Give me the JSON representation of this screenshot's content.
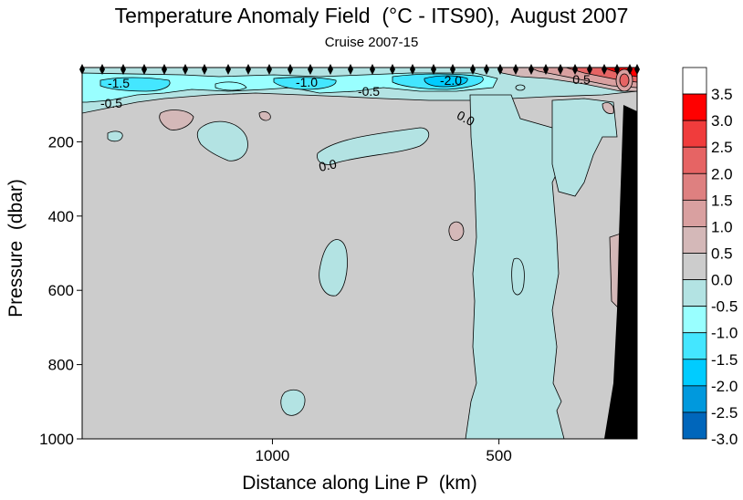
{
  "chart_data": {
    "type": "heatmap",
    "title": "Temperature Anomaly Field  (°C - ITS90),  August 2007",
    "subtitle": "Cruise 2007-15",
    "xlabel": "Distance along Line P  (km)",
    "ylabel": "Pressure  (dbar)",
    "x_ticks": [
      "1000",
      "500"
    ],
    "x_tick_values": [
      1000,
      500
    ],
    "xlim": [
      1420,
      195
    ],
    "y_ticks": [
      "200",
      "400",
      "600",
      "800",
      "1000"
    ],
    "y_tick_values": [
      200,
      400,
      600,
      800,
      1000
    ],
    "ylim": [
      0,
      1000
    ],
    "y_inverted": true,
    "contour_labels": [
      "-1.5",
      "-1.0",
      "-2.0",
      "-0.5",
      "-0.5",
      "0.0",
      "0.0",
      "0.5"
    ],
    "colorbar": {
      "labels": [
        "3.5",
        "3.0",
        "2.5",
        "2.0",
        "1.5",
        "1.0",
        "0.5",
        "0.0",
        "-0.5",
        "-1.0",
        "-1.5",
        "-2.0",
        "-2.5",
        "-3.0"
      ],
      "colors": [
        "#ffffff",
        "#ff0000",
        "#f03c3c",
        "#e66464",
        "#de8080",
        "#d9a0a0",
        "#d4b8b8",
        "#cccccc",
        "#b3e3e3",
        "#99ffff",
        "#44e6ff",
        "#00ccff",
        "#0099dd",
        "#0066bb"
      ]
    },
    "colors": {
      "background_field": "#cccccc",
      "neg_0_5": "#b3e3e3",
      "neg_1_0": "#99ffff",
      "neg_1_5": "#44e6ff",
      "neg_2_0": "#00ccff",
      "pos_0_5": "#d4b8b8",
      "pos_1_0": "#d9a0a0",
      "pos_2_0": "#e66464",
      "pos_3_0": "#ff0000",
      "bathymetry": "#000000"
    }
  }
}
